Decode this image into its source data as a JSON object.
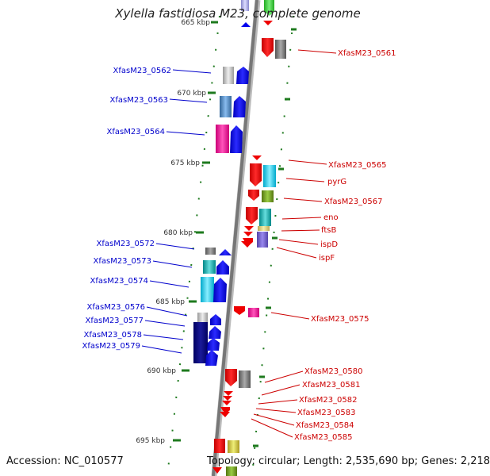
{
  "title": "Xylella fastidiosa M23, complete genome",
  "footer": {
    "accession": "Accession: NC_010577",
    "summary": "Topology: circular; Length: 2,535,690 bp; Genes: 2,218"
  },
  "colors": {
    "backbone": "#777777",
    "forward_label": "#0000cc",
    "reverse_label": "#cc0000",
    "tick": "#1e7a1e"
  },
  "ticks": [
    "665 kbp",
    "670 kbp",
    "675 kbp",
    "680 kbp",
    "685 kbp",
    "690 kbp",
    "695 kbp"
  ],
  "forward_labels": [
    "XfasM23_0562",
    "XfasM23_0563",
    "XfasM23_0564",
    "XfasM23_0572",
    "XfasM23_0573",
    "XfasM23_0574",
    "XfasM23_0576",
    "XfasM23_0577",
    "XfasM23_0578",
    "XfasM23_0579"
  ],
  "reverse_labels": [
    "XfasM23_0561",
    "XfasM23_0565",
    "pyrG",
    "XfasM23_0567",
    "eno",
    "ftsB",
    "ispD",
    "ispF",
    "XfasM23_0575",
    "XfasM23_0580",
    "XfasM23_0581",
    "XfasM23_0582",
    "XfasM23_0583",
    "XfasM23_0584",
    "XfasM23_0585"
  ]
}
